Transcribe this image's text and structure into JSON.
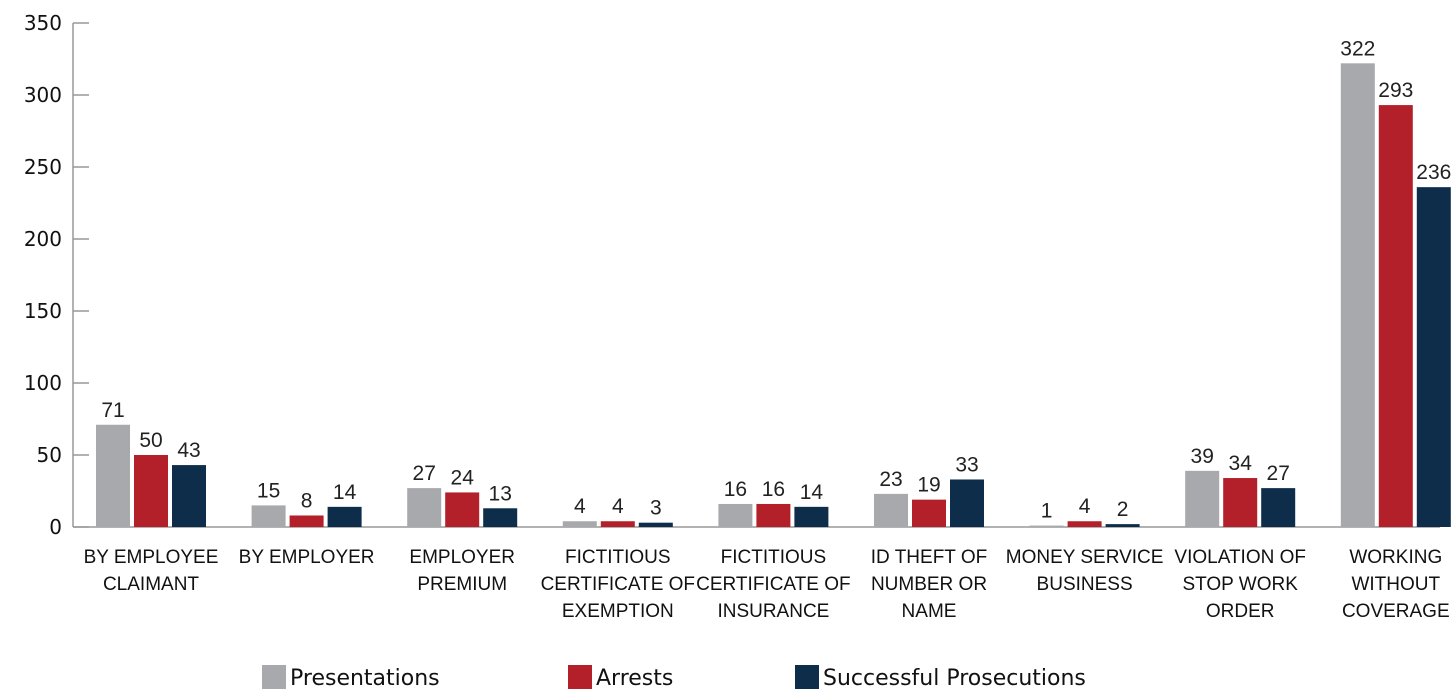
{
  "chart_data": {
    "type": "bar",
    "title": "",
    "xlabel": "",
    "ylabel": "",
    "ylim": [
      0,
      350
    ],
    "yticks": [
      0,
      50,
      100,
      150,
      200,
      250,
      300,
      350
    ],
    "grid": false,
    "legend_position": "bottom",
    "categories": [
      [
        "BY EMPLOYEE",
        "CLAIMANT"
      ],
      [
        "BY EMPLOYER"
      ],
      [
        "EMPLOYER",
        "PREMIUM"
      ],
      [
        "FICTITIOUS",
        "CERTIFICATE OF",
        "EXEMPTION"
      ],
      [
        "FICTITIOUS",
        "CERTIFICATE OF",
        "INSURANCE"
      ],
      [
        "ID THEFT OF",
        "NUMBER OR",
        "NAME"
      ],
      [
        "MONEY SERVICE",
        "BUSINESS"
      ],
      [
        "VIOLATION OF",
        "STOP WORK",
        "ORDER"
      ],
      [
        "WORKING",
        "WITHOUT",
        "COVERAGE"
      ]
    ],
    "series": [
      {
        "name": "Presentations",
        "color": "#a7a9ac",
        "values": [
          71,
          15,
          27,
          4,
          16,
          23,
          1,
          39,
          322
        ]
      },
      {
        "name": "Arrests",
        "color": "#b3202a",
        "values": [
          50,
          8,
          24,
          4,
          16,
          19,
          4,
          34,
          293
        ]
      },
      {
        "name": "Successful Prosecutions",
        "color": "#0d2d4a",
        "values": [
          43,
          14,
          13,
          3,
          14,
          33,
          2,
          27,
          236
        ]
      }
    ]
  }
}
